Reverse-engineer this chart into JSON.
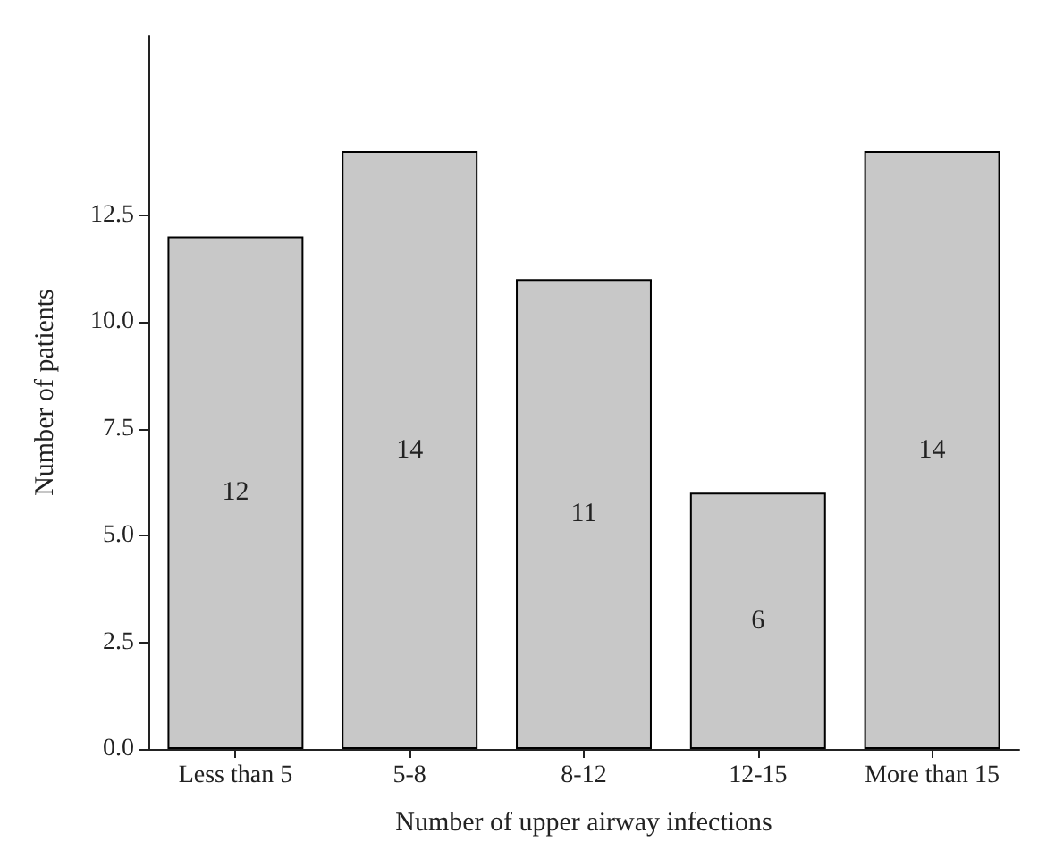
{
  "chart_data": {
    "type": "bar",
    "xlabel": "Number of upper airway infections",
    "ylabel": "Number of patients",
    "categories": [
      "Less than 5",
      "5-8",
      "8-12",
      "12-15",
      "More than 15"
    ],
    "values": [
      12,
      14,
      11,
      6,
      14
    ],
    "color": "#c8c8c8",
    "data_labels": true,
    "ylim": [
      0,
      16.7
    ],
    "yticks": [
      {
        "value": 0,
        "label": "0.0"
      },
      {
        "value": 2.5,
        "label": "2.5"
      },
      {
        "value": 5,
        "label": "5.0"
      },
      {
        "value": 7.5,
        "label": "7.5"
      },
      {
        "value": 10,
        "label": "10.0"
      },
      {
        "value": 12.5,
        "label": "12.5"
      }
    ],
    "grid": false
  }
}
